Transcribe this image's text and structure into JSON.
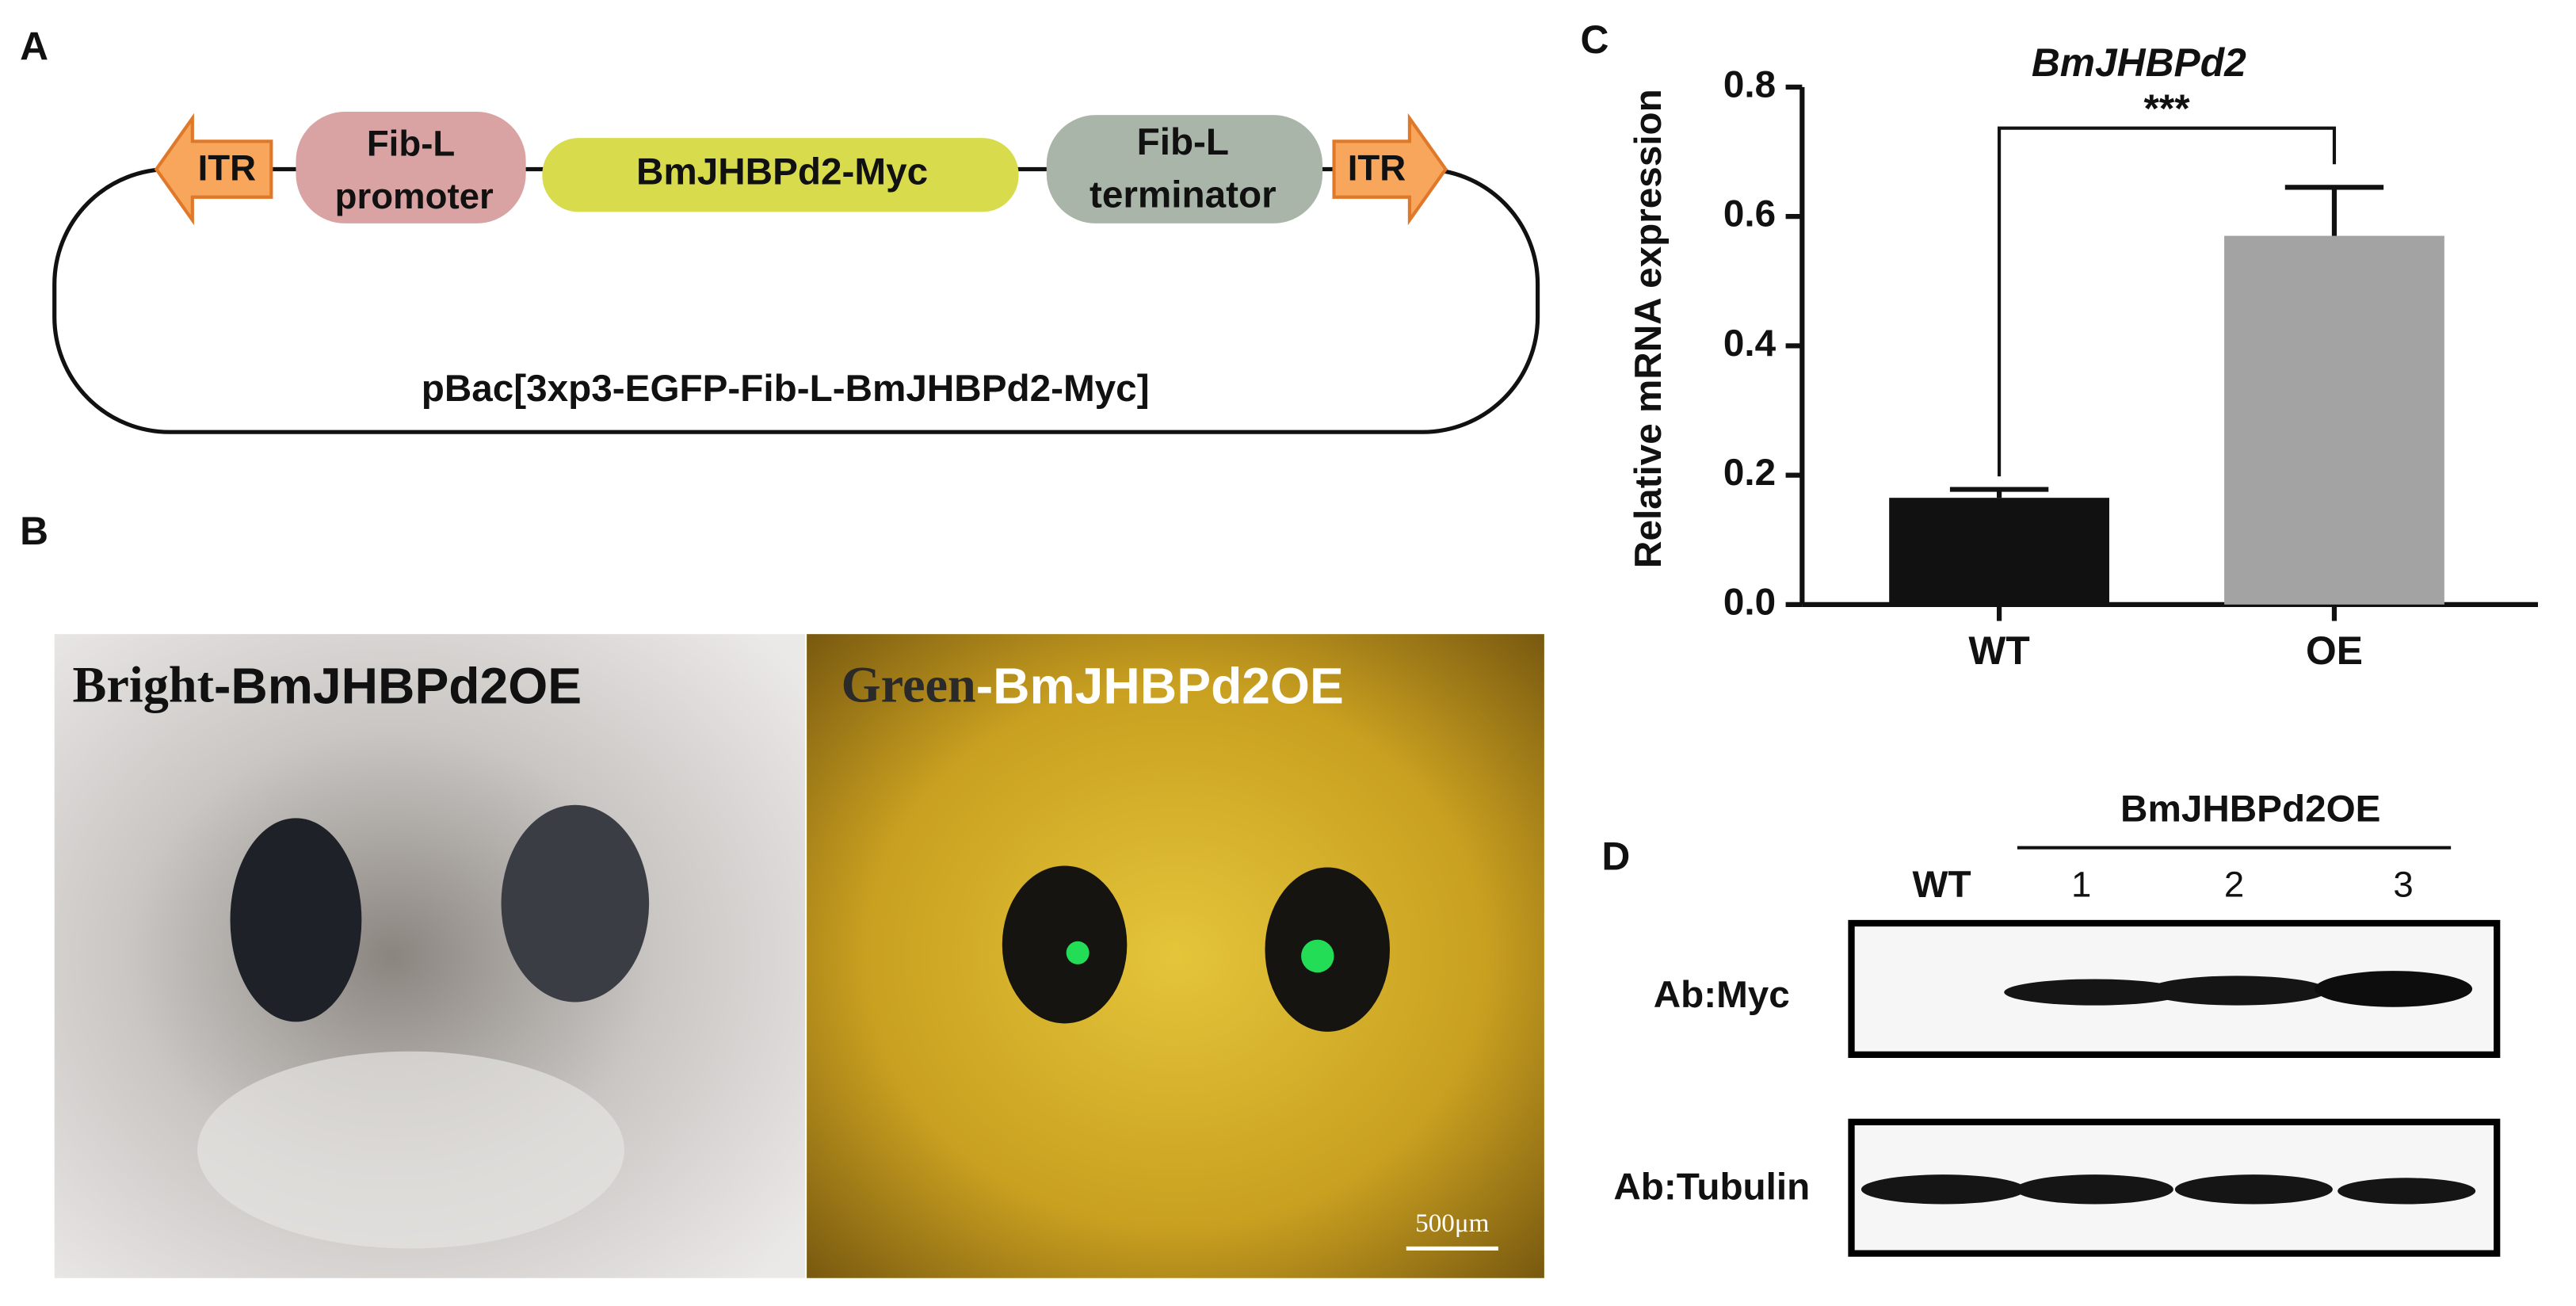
{
  "panels": {
    "a": "A",
    "b": "B",
    "c": "C",
    "d": "D"
  },
  "construct": {
    "itr_left": "ITR",
    "promoter": [
      "Fib-L",
      "promoter"
    ],
    "gene": "BmJHBPd2-Myc",
    "terminator": [
      "Fib-L",
      "terminator"
    ],
    "itr_right": "ITR",
    "plasmid": "pBac[3xp3-EGFP-Fib-L-BmJHBPd2-Myc]"
  },
  "photos": {
    "bright": [
      "Bright",
      "-BmJHBPd2OE"
    ],
    "green": [
      "Green",
      "-BmJHBPd2OE"
    ],
    "scale_bar": "500μm"
  },
  "chart_data": {
    "type": "bar",
    "title": "BmJHBPd2",
    "y_label": "Relative mRNA expression",
    "categories": [
      "WT",
      "OE"
    ],
    "values": [
      0.165,
      0.57
    ],
    "errors": [
      0.013,
      0.075
    ],
    "colors": [
      "#111111",
      "#a3a3a3"
    ],
    "significance": "***",
    "ylim": [
      0,
      0.8
    ],
    "yticks": [
      {
        "value": 0,
        "label": "0.0"
      },
      0.2,
      0.4,
      0.6,
      0.8
    ]
  },
  "western": {
    "group": "BmJHBPd2OE",
    "lanes": [
      "WT",
      "1",
      "2",
      "3"
    ],
    "rows": [
      "Ab:Myc",
      "Ab:Tubulin"
    ]
  }
}
